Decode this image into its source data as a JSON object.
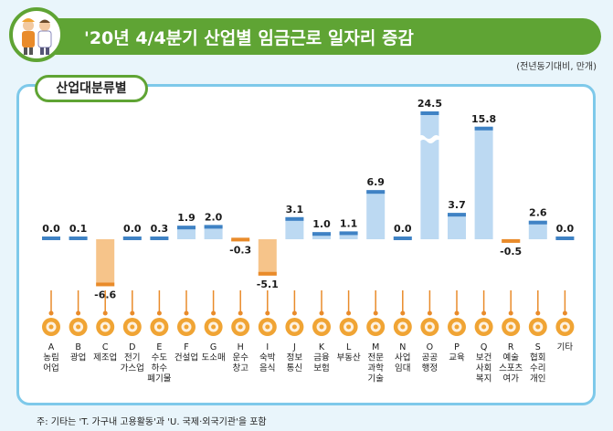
{
  "title": "'20년 4/4분기 산업별 임금근로 일자리 증감",
  "unit": "(전년동기대비, 만개)",
  "panel_title": "산업대분류별",
  "footnote": "주: 기타는 'T. 가구내 고용활동'과 'U. 국제·외국기관'을 포함",
  "colors": {
    "positive_bar": "#bcd9f2",
    "positive_cap": "#3f82c4",
    "negative_bar": "#f6c48a",
    "negative_cap": "#e98b2a",
    "header_green": "#5fa434",
    "icon_orange": "#f0a434",
    "panel_border": "#7ec9ea"
  },
  "chart_data": {
    "type": "bar",
    "axis_break": {
      "category": "O",
      "note": "bar truncated with a wavy break"
    },
    "categories": [
      {
        "code": "A",
        "label": [
          "농림",
          "어업"
        ],
        "value": 0.0,
        "value_label": "0.0",
        "icon": "wheat-icon"
      },
      {
        "code": "B",
        "label": [
          "광업"
        ],
        "value": 0.1,
        "value_label": "0.1",
        "icon": "helmet-icon"
      },
      {
        "code": "C",
        "label": [
          "제조업"
        ],
        "value": -6.6,
        "value_label": "-6.6",
        "icon": "gear-icon"
      },
      {
        "code": "D",
        "label": [
          "전기",
          "가스업"
        ],
        "value": 0.0,
        "value_label": "0.0",
        "icon": "lightning-icon"
      },
      {
        "code": "E",
        "label": [
          "수도",
          "하수",
          "폐기물"
        ],
        "value": 0.3,
        "value_label": "0.3",
        "icon": "faucet-icon"
      },
      {
        "code": "F",
        "label": [
          "건설업"
        ],
        "value": 1.9,
        "value_label": "1.9",
        "icon": "building-icon"
      },
      {
        "code": "G",
        "label": [
          "도소매"
        ],
        "value": 2.0,
        "value_label": "2.0",
        "icon": "basket-icon"
      },
      {
        "code": "H",
        "label": [
          "운수",
          "창고"
        ],
        "value": -0.3,
        "value_label": "-0.3",
        "icon": "truck-icon"
      },
      {
        "code": "I",
        "label": [
          "숙박",
          "음식"
        ],
        "value": -5.1,
        "value_label": "-5.1",
        "icon": "dish-icon"
      },
      {
        "code": "J",
        "label": [
          "정보",
          "통신"
        ],
        "value": 3.1,
        "value_label": "3.1",
        "icon": "phone-icon"
      },
      {
        "code": "K",
        "label": [
          "금융",
          "보험"
        ],
        "value": 1.0,
        "value_label": "1.0",
        "icon": "money-icon"
      },
      {
        "code": "L",
        "label": [
          "부동산"
        ],
        "value": 1.1,
        "value_label": "1.1",
        "icon": "house-icon"
      },
      {
        "code": "M",
        "label": [
          "전문",
          "과학",
          "기술"
        ],
        "value": 6.9,
        "value_label": "6.9",
        "icon": "flask-icon"
      },
      {
        "code": "N",
        "label": [
          "사업",
          "임대"
        ],
        "value": 0.0,
        "value_label": "0.0",
        "icon": "people-icon"
      },
      {
        "code": "O",
        "label": [
          "공공",
          "행정"
        ],
        "value": 24.5,
        "value_label": "24.5",
        "icon": "document-icon"
      },
      {
        "code": "P",
        "label": [
          "교육"
        ],
        "value": 3.7,
        "value_label": "3.7",
        "icon": "graduation-cap-icon"
      },
      {
        "code": "Q",
        "label": [
          "보건",
          "사회",
          "복지"
        ],
        "value": 15.8,
        "value_label": "15.8",
        "icon": "medical-kit-icon"
      },
      {
        "code": "R",
        "label": [
          "예술",
          "스포츠",
          "여가"
        ],
        "value": -0.5,
        "value_label": "-0.5",
        "icon": "palette-icon"
      },
      {
        "code": "S",
        "label": [
          "협회",
          "수리",
          "개인"
        ],
        "value": 2.6,
        "value_label": "2.6",
        "icon": "group-icon"
      },
      {
        "code": "",
        "label": [
          "기타"
        ],
        "value": 0.0,
        "value_label": "0.0",
        "icon": "misc-doc-icon"
      }
    ]
  }
}
